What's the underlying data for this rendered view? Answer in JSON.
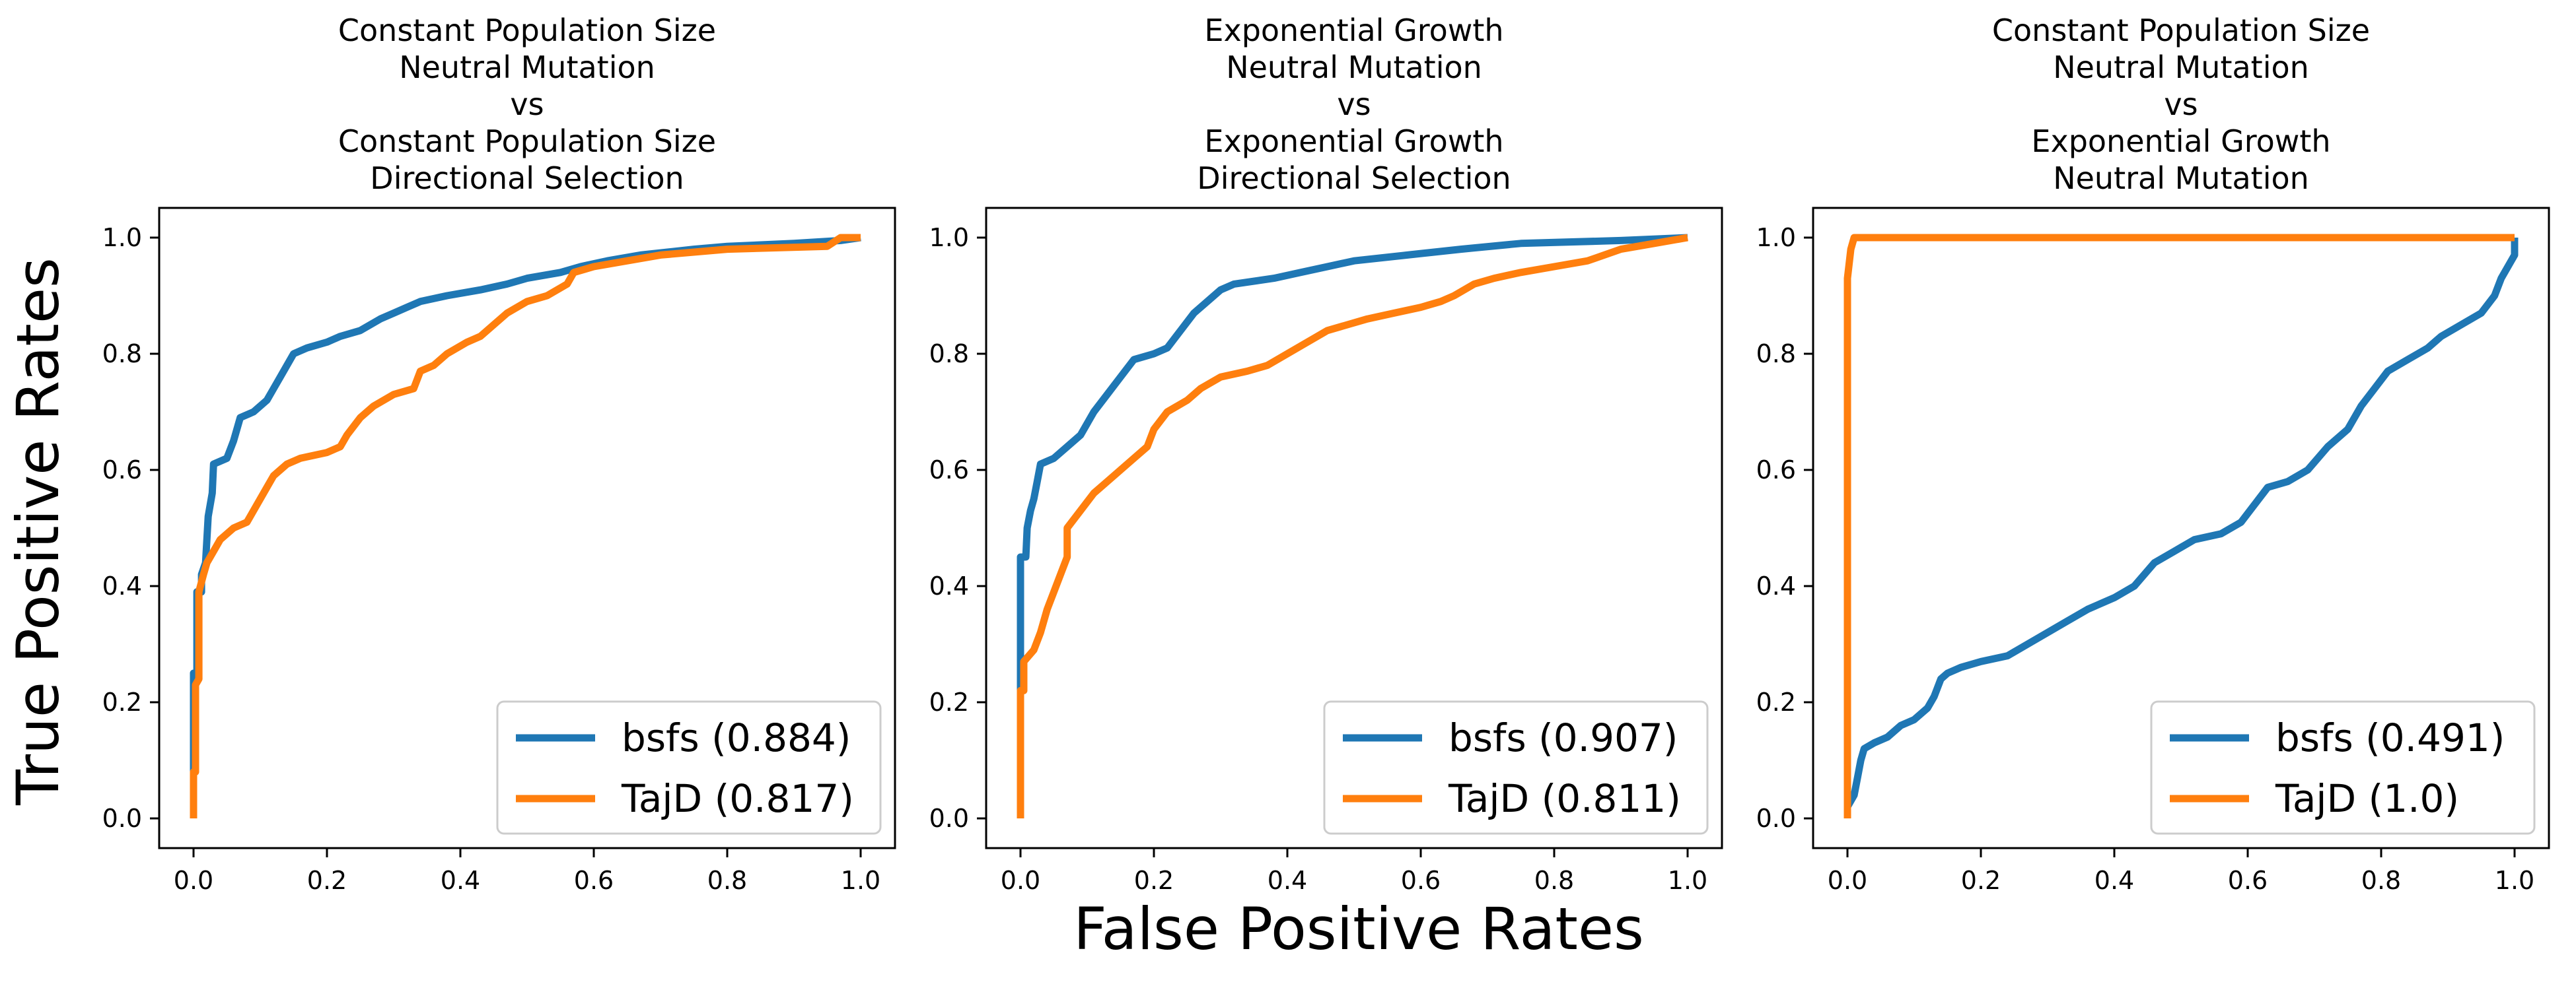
{
  "figure": {
    "ylabel": "True Positive Rates",
    "xlabel": "False Positive Rates"
  },
  "chart_data": [
    {
      "type": "line",
      "title": [
        "Constant Population Size",
        "Neutral Mutation",
        "vs",
        "Constant Population Size",
        "Directional Selection"
      ],
      "xlim": [
        0,
        1
      ],
      "ylim": [
        0,
        1
      ],
      "xticks": [
        "0.0",
        "0.2",
        "0.4",
        "0.6",
        "0.8",
        "1.0"
      ],
      "yticks": [
        "0.0",
        "0.2",
        "0.4",
        "0.6",
        "0.8",
        "1.0"
      ],
      "legend": "lower-right",
      "grid": false,
      "series": [
        {
          "name": "bsfs (0.884)",
          "color": "#1f77b4",
          "points": [
            [
              0,
              0
            ],
            [
              0,
              0.25
            ],
            [
              0.005,
              0.25
            ],
            [
              0.005,
              0.39
            ],
            [
              0.012,
              0.39
            ],
            [
              0.012,
              0.42
            ],
            [
              0.018,
              0.44
            ],
            [
              0.022,
              0.52
            ],
            [
              0.028,
              0.56
            ],
            [
              0.03,
              0.61
            ],
            [
              0.05,
              0.62
            ],
            [
              0.06,
              0.65
            ],
            [
              0.07,
              0.69
            ],
            [
              0.09,
              0.7
            ],
            [
              0.11,
              0.72
            ],
            [
              0.12,
              0.74
            ],
            [
              0.13,
              0.76
            ],
            [
              0.14,
              0.78
            ],
            [
              0.15,
              0.8
            ],
            [
              0.17,
              0.81
            ],
            [
              0.2,
              0.82
            ],
            [
              0.22,
              0.83
            ],
            [
              0.25,
              0.84
            ],
            [
              0.28,
              0.86
            ],
            [
              0.3,
              0.87
            ],
            [
              0.32,
              0.88
            ],
            [
              0.34,
              0.89
            ],
            [
              0.38,
              0.9
            ],
            [
              0.43,
              0.91
            ],
            [
              0.47,
              0.92
            ],
            [
              0.5,
              0.93
            ],
            [
              0.55,
              0.94
            ],
            [
              0.58,
              0.95
            ],
            [
              0.62,
              0.96
            ],
            [
              0.67,
              0.97
            ],
            [
              0.75,
              0.98
            ],
            [
              0.8,
              0.985
            ],
            [
              0.9,
              0.99
            ],
            [
              0.97,
              0.995
            ],
            [
              1,
              1
            ]
          ]
        },
        {
          "name": "TajD (0.817)",
          "color": "#ff7f0e",
          "points": [
            [
              0,
              0
            ],
            [
              0,
              0.08
            ],
            [
              0.003,
              0.08
            ],
            [
              0.003,
              0.23
            ],
            [
              0.008,
              0.24
            ],
            [
              0.008,
              0.39
            ],
            [
              0.015,
              0.42
            ],
            [
              0.02,
              0.44
            ],
            [
              0.03,
              0.46
            ],
            [
              0.04,
              0.48
            ],
            [
              0.06,
              0.5
            ],
            [
              0.08,
              0.51
            ],
            [
              0.09,
              0.53
            ],
            [
              0.1,
              0.55
            ],
            [
              0.11,
              0.57
            ],
            [
              0.12,
              0.59
            ],
            [
              0.14,
              0.61
            ],
            [
              0.16,
              0.62
            ],
            [
              0.2,
              0.63
            ],
            [
              0.22,
              0.64
            ],
            [
              0.23,
              0.66
            ],
            [
              0.25,
              0.69
            ],
            [
              0.27,
              0.71
            ],
            [
              0.3,
              0.73
            ],
            [
              0.33,
              0.74
            ],
            [
              0.34,
              0.77
            ],
            [
              0.36,
              0.78
            ],
            [
              0.38,
              0.8
            ],
            [
              0.41,
              0.82
            ],
            [
              0.43,
              0.83
            ],
            [
              0.45,
              0.85
            ],
            [
              0.47,
              0.87
            ],
            [
              0.5,
              0.89
            ],
            [
              0.53,
              0.9
            ],
            [
              0.56,
              0.92
            ],
            [
              0.57,
              0.94
            ],
            [
              0.6,
              0.95
            ],
            [
              0.65,
              0.96
            ],
            [
              0.7,
              0.97
            ],
            [
              0.8,
              0.98
            ],
            [
              0.95,
              0.985
            ],
            [
              0.97,
              1
            ],
            [
              1,
              1
            ]
          ]
        }
      ],
      "legend_entries": [
        "bsfs (0.884)",
        "TajD (0.817)"
      ]
    },
    {
      "type": "line",
      "title": [
        "Exponential Growth",
        "Neutral Mutation",
        "vs",
        "Exponential Growth",
        "Directional Selection"
      ],
      "xlim": [
        0,
        1
      ],
      "ylim": [
        0,
        1
      ],
      "xticks": [
        "0.0",
        "0.2",
        "0.4",
        "0.6",
        "0.8",
        "1.0"
      ],
      "yticks": [
        "0.0",
        "0.2",
        "0.4",
        "0.6",
        "0.8",
        "1.0"
      ],
      "legend": "lower-right",
      "grid": false,
      "series": [
        {
          "name": "bsfs (0.907)",
          "color": "#1f77b4",
          "points": [
            [
              0,
              0
            ],
            [
              0,
              0.45
            ],
            [
              0.008,
              0.45
            ],
            [
              0.01,
              0.5
            ],
            [
              0.015,
              0.53
            ],
            [
              0.02,
              0.55
            ],
            [
              0.025,
              0.58
            ],
            [
              0.03,
              0.61
            ],
            [
              0.05,
              0.62
            ],
            [
              0.07,
              0.64
            ],
            [
              0.09,
              0.66
            ],
            [
              0.11,
              0.7
            ],
            [
              0.13,
              0.73
            ],
            [
              0.15,
              0.76
            ],
            [
              0.17,
              0.79
            ],
            [
              0.2,
              0.8
            ],
            [
              0.22,
              0.81
            ],
            [
              0.24,
              0.84
            ],
            [
              0.26,
              0.87
            ],
            [
              0.28,
              0.89
            ],
            [
              0.3,
              0.91
            ],
            [
              0.32,
              0.92
            ],
            [
              0.38,
              0.93
            ],
            [
              0.42,
              0.94
            ],
            [
              0.46,
              0.95
            ],
            [
              0.5,
              0.96
            ],
            [
              0.58,
              0.97
            ],
            [
              0.66,
              0.98
            ],
            [
              0.75,
              0.99
            ],
            [
              0.9,
              0.995
            ],
            [
              1,
              1
            ]
          ]
        },
        {
          "name": "TajD (0.811)",
          "color": "#ff7f0e",
          "points": [
            [
              0,
              0
            ],
            [
              0,
              0.22
            ],
            [
              0.005,
              0.22
            ],
            [
              0.005,
              0.27
            ],
            [
              0.02,
              0.29
            ],
            [
              0.03,
              0.32
            ],
            [
              0.04,
              0.36
            ],
            [
              0.05,
              0.39
            ],
            [
              0.06,
              0.42
            ],
            [
              0.07,
              0.45
            ],
            [
              0.07,
              0.5
            ],
            [
              0.09,
              0.53
            ],
            [
              0.11,
              0.56
            ],
            [
              0.13,
              0.58
            ],
            [
              0.15,
              0.6
            ],
            [
              0.17,
              0.62
            ],
            [
              0.19,
              0.64
            ],
            [
              0.2,
              0.67
            ],
            [
              0.22,
              0.7
            ],
            [
              0.25,
              0.72
            ],
            [
              0.27,
              0.74
            ],
            [
              0.3,
              0.76
            ],
            [
              0.34,
              0.77
            ],
            [
              0.37,
              0.78
            ],
            [
              0.4,
              0.8
            ],
            [
              0.43,
              0.82
            ],
            [
              0.46,
              0.84
            ],
            [
              0.49,
              0.85
            ],
            [
              0.52,
              0.86
            ],
            [
              0.56,
              0.87
            ],
            [
              0.6,
              0.88
            ],
            [
              0.63,
              0.89
            ],
            [
              0.65,
              0.9
            ],
            [
              0.68,
              0.92
            ],
            [
              0.71,
              0.93
            ],
            [
              0.75,
              0.94
            ],
            [
              0.8,
              0.95
            ],
            [
              0.85,
              0.96
            ],
            [
              0.9,
              0.98
            ],
            [
              0.95,
              0.99
            ],
            [
              1,
              1
            ]
          ]
        }
      ],
      "legend_entries": [
        "bsfs (0.907)",
        "TajD (0.811)"
      ]
    },
    {
      "type": "line",
      "title": [
        "Constant Population Size",
        "Neutral Mutation",
        "vs",
        "Exponential Growth",
        "Neutral Mutation"
      ],
      "xlim": [
        0,
        1
      ],
      "ylim": [
        0,
        1
      ],
      "xticks": [
        "0.0",
        "0.2",
        "0.4",
        "0.6",
        "0.8",
        "1.0"
      ],
      "yticks": [
        "0.0",
        "0.2",
        "0.4",
        "0.6",
        "0.8",
        "1.0"
      ],
      "legend": "lower-right",
      "grid": false,
      "series": [
        {
          "name": "bsfs (0.491)",
          "color": "#1f77b4",
          "points": [
            [
              0,
              0
            ],
            [
              0,
              0.02
            ],
            [
              0.01,
              0.04
            ],
            [
              0.015,
              0.07
            ],
            [
              0.02,
              0.1
            ],
            [
              0.025,
              0.12
            ],
            [
              0.04,
              0.13
            ],
            [
              0.06,
              0.14
            ],
            [
              0.08,
              0.16
            ],
            [
              0.1,
              0.17
            ],
            [
              0.12,
              0.19
            ],
            [
              0.13,
              0.21
            ],
            [
              0.14,
              0.24
            ],
            [
              0.15,
              0.25
            ],
            [
              0.17,
              0.26
            ],
            [
              0.2,
              0.27
            ],
            [
              0.24,
              0.28
            ],
            [
              0.27,
              0.3
            ],
            [
              0.3,
              0.32
            ],
            [
              0.33,
              0.34
            ],
            [
              0.36,
              0.36
            ],
            [
              0.4,
              0.38
            ],
            [
              0.43,
              0.4
            ],
            [
              0.46,
              0.44
            ],
            [
              0.49,
              0.46
            ],
            [
              0.52,
              0.48
            ],
            [
              0.56,
              0.49
            ],
            [
              0.59,
              0.51
            ],
            [
              0.61,
              0.54
            ],
            [
              0.63,
              0.57
            ],
            [
              0.66,
              0.58
            ],
            [
              0.69,
              0.6
            ],
            [
              0.72,
              0.64
            ],
            [
              0.75,
              0.67
            ],
            [
              0.77,
              0.71
            ],
            [
              0.79,
              0.74
            ],
            [
              0.81,
              0.77
            ],
            [
              0.84,
              0.79
            ],
            [
              0.87,
              0.81
            ],
            [
              0.89,
              0.83
            ],
            [
              0.92,
              0.85
            ],
            [
              0.95,
              0.87
            ],
            [
              0.97,
              0.9
            ],
            [
              0.98,
              0.93
            ],
            [
              1,
              0.97
            ],
            [
              1,
              1
            ]
          ]
        },
        {
          "name": "TajD (1.0)",
          "color": "#ff7f0e",
          "points": [
            [
              0,
              0
            ],
            [
              0,
              0.93
            ],
            [
              0.005,
              0.98
            ],
            [
              0.01,
              1.0
            ],
            [
              1,
              1
            ]
          ]
        }
      ],
      "legend_entries": [
        "bsfs (0.491)",
        "TajD (1.0)"
      ]
    }
  ]
}
